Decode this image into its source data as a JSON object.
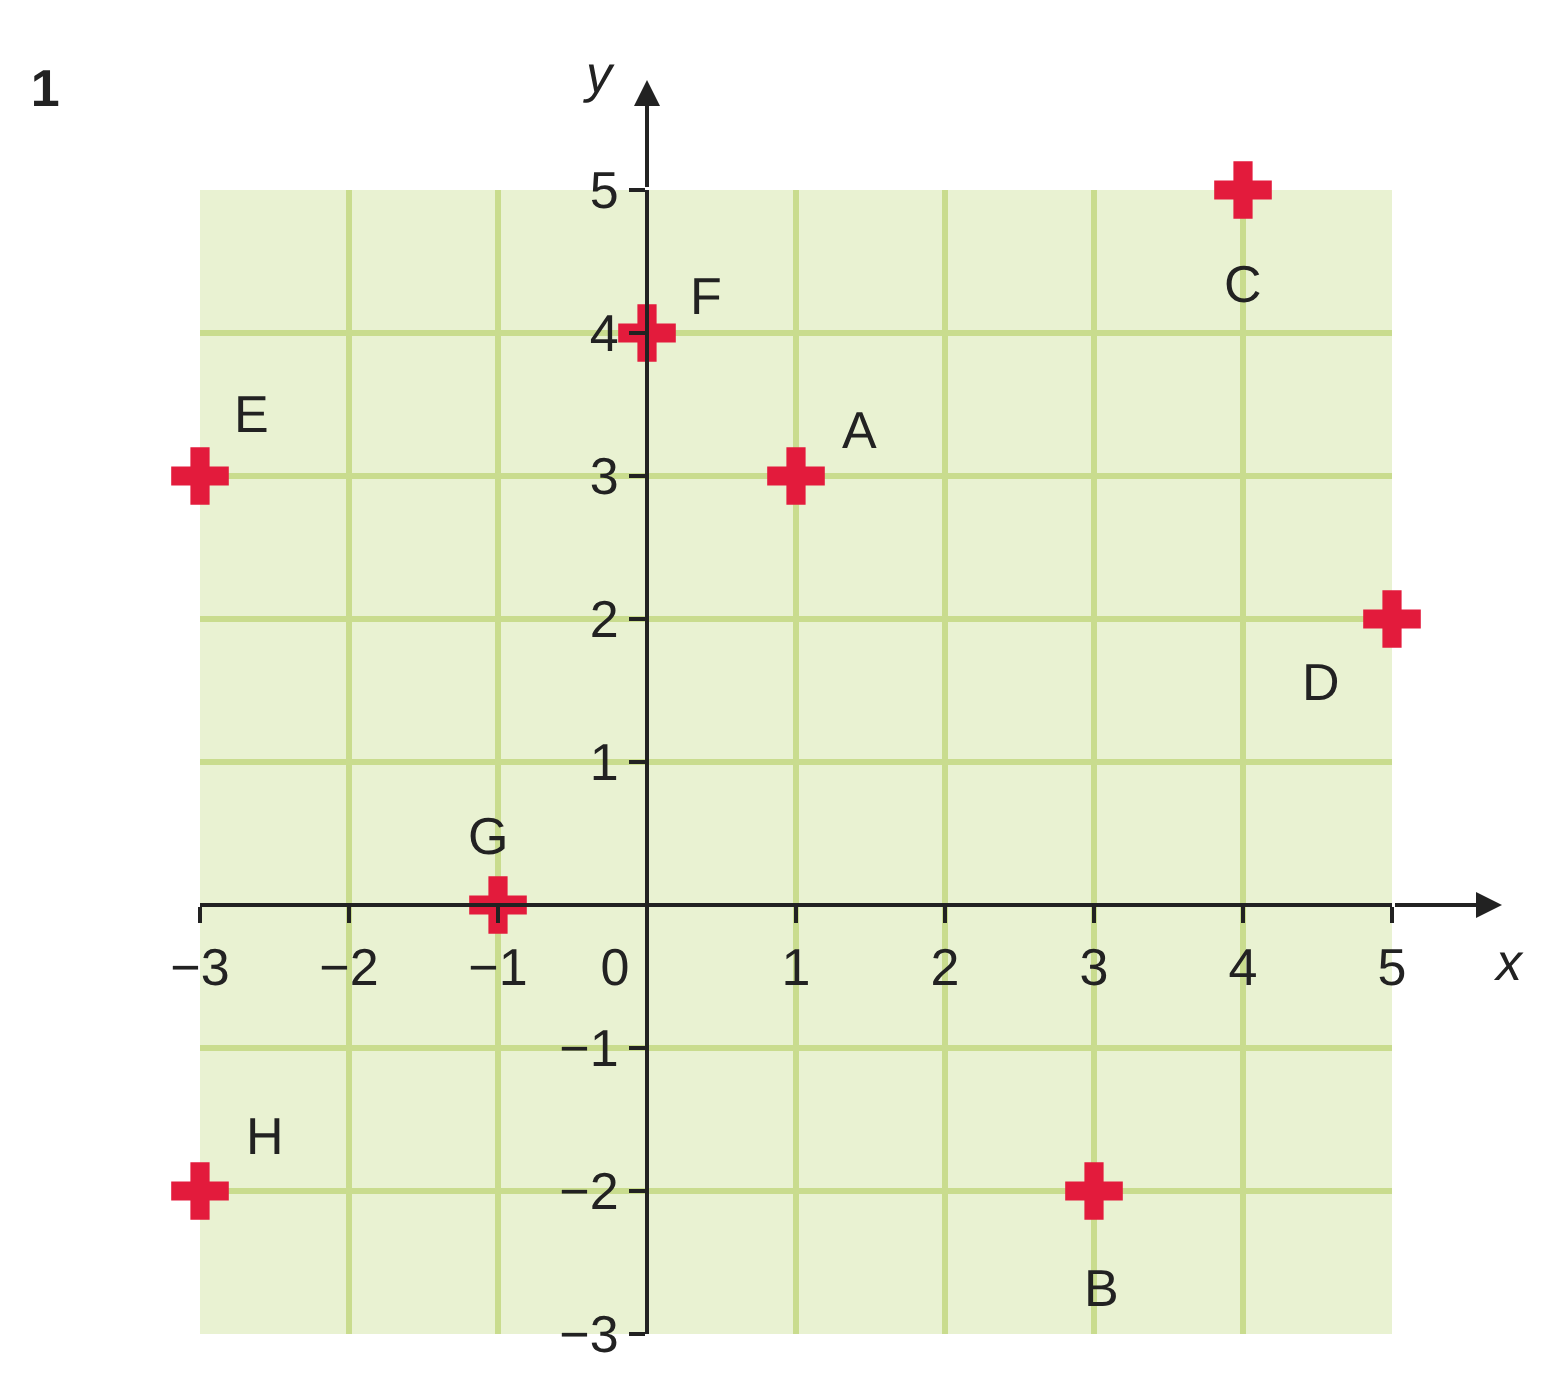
{
  "chart_data": {
    "type": "scatter",
    "title": "1",
    "xlabel": "x",
    "ylabel": "y",
    "series": [
      {
        "color": "#e31b3c",
        "x": [
          1,
          3,
          4,
          5,
          -3,
          0,
          -1,
          -3
        ],
        "values": [
          3,
          -2,
          5,
          2,
          3,
          4,
          0,
          -2
        ]
      }
    ],
    "xlim": [
      -3,
      5
    ],
    "ylim": [
      -3,
      5
    ],
    "xticks": [
      -3,
      -2,
      -1,
      {
        "value": 0,
        "label": "0"
      },
      1,
      2,
      3,
      4,
      5
    ],
    "yticks": [
      -3,
      -2,
      -1,
      1,
      2,
      3,
      4,
      5
    ],
    "annotations": [
      {
        "text": "A",
        "x": 1,
        "y": 3
      },
      {
        "text": "B",
        "x": 3,
        "y": -2
      },
      {
        "text": "C",
        "x": 4,
        "y": 5
      },
      {
        "text": "D",
        "x": 5,
        "y": 2
      },
      {
        "text": "E",
        "x": -3,
        "y": 3
      },
      {
        "text": "F",
        "x": 0,
        "y": 4
      },
      {
        "text": "G",
        "x": -1,
        "y": 0
      },
      {
        "text": "H",
        "x": -3,
        "y": -2
      }
    ],
    "grid": true,
    "marker": "cross"
  }
}
